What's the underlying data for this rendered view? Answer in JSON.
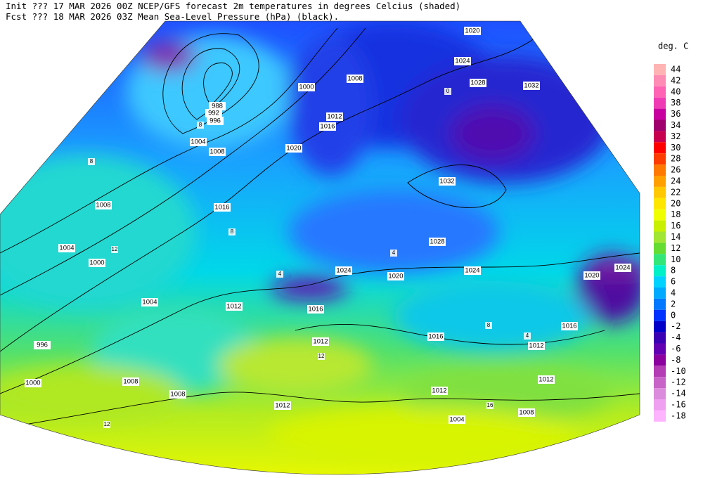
{
  "header": {
    "line1": "Init  ??? 17 MAR 2026 00Z  NCEP/GFS forecast 2m temperatures in degrees Celcius (shaded)",
    "line2": "Fcst ??? 18 MAR 2026 03Z  Mean Sea-Level Pressure (hPa) (black)."
  },
  "legend": {
    "title": "deg. C",
    "levels": [
      {
        "label": "44",
        "color": "#ffb4b4"
      },
      {
        "label": "42",
        "color": "#ff8cb4"
      },
      {
        "label": "40",
        "color": "#ff64b4"
      },
      {
        "label": "38",
        "color": "#f03cb4"
      },
      {
        "label": "36",
        "color": "#c800a0"
      },
      {
        "label": "34",
        "color": "#a0006e"
      },
      {
        "label": "32",
        "color": "#c80050"
      },
      {
        "label": "30",
        "color": "#ff0000"
      },
      {
        "label": "28",
        "color": "#ff3c00"
      },
      {
        "label": "26",
        "color": "#ff7800"
      },
      {
        "label": "24",
        "color": "#ffa000"
      },
      {
        "label": "22",
        "color": "#ffc800"
      },
      {
        "label": "20",
        "color": "#ffe600"
      },
      {
        "label": "18",
        "color": "#f0ff00"
      },
      {
        "label": "16",
        "color": "#c8f000"
      },
      {
        "label": "14",
        "color": "#a0e632"
      },
      {
        "label": "12",
        "color": "#64dc32"
      },
      {
        "label": "10",
        "color": "#32e678"
      },
      {
        "label": "8",
        "color": "#00f0c8"
      },
      {
        "label": "6",
        "color": "#00d2ff"
      },
      {
        "label": "4",
        "color": "#00aaff"
      },
      {
        "label": "2",
        "color": "#0078ff"
      },
      {
        "label": "0",
        "color": "#0032ff"
      },
      {
        "label": "-2",
        "color": "#0000c8"
      },
      {
        "label": "-4",
        "color": "#3c00b4"
      },
      {
        "label": "-6",
        "color": "#6400b4"
      },
      {
        "label": "-8",
        "color": "#8c00a0"
      },
      {
        "label": "-10",
        "color": "#b43cb4"
      },
      {
        "label": "-12",
        "color": "#c864c8"
      },
      {
        "label": "-14",
        "color": "#dc8cdc"
      },
      {
        "label": "-16",
        "color": "#f0a0f0"
      },
      {
        "label": "-18",
        "color": "#ffb4ff"
      }
    ]
  },
  "map": {
    "isobar_labels": [
      "1020",
      "1024",
      "1028",
      "1032",
      "1032",
      "1000",
      "1008",
      "1012",
      "1016",
      "1020",
      "988",
      "992",
      "996",
      "1004",
      "1008",
      "1016",
      "1008",
      "1004",
      "1000",
      "1004",
      "996",
      "1000",
      "1012",
      "1016",
      "1024",
      "1020",
      "1028",
      "1024",
      "1012",
      "1016",
      "1016",
      "1012",
      "1012",
      "1012",
      "1008",
      "1008",
      "1012",
      "1004",
      "1008",
      "1024",
      "1020"
    ],
    "temperature_labels": [
      "8",
      "8",
      "12",
      "12",
      "4",
      "4",
      "8",
      "12",
      "16",
      "8",
      "4",
      "0"
    ]
  }
}
